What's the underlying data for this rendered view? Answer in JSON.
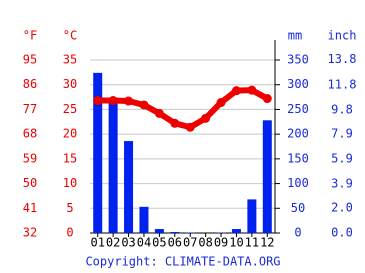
{
  "chart_data": {
    "type": "climate",
    "categories": [
      "01",
      "02",
      "03",
      "04",
      "05",
      "06",
      "07",
      "08",
      "09",
      "10",
      "11",
      "12"
    ],
    "temperature": {
      "color": "#ee0000",
      "values": [
        26.8,
        26.8,
        26.7,
        25.9,
        24.2,
        22.2,
        21.4,
        23.2,
        26.4,
        28.8,
        28.9,
        27.2
      ]
    },
    "precipitation": {
      "color": "#0022ee",
      "axis": "y2",
      "values": [
        324,
        268,
        186,
        53,
        8,
        2,
        1,
        0,
        1,
        8,
        68,
        228
      ]
    },
    "ylabel": "°C",
    "ylabel_f": "°F",
    "y2label": "mm",
    "y2label_inch": "inch",
    "ylim": [
      0,
      35
    ],
    "yticks": [
      0,
      5,
      10,
      15,
      20,
      25,
      30,
      35
    ],
    "yticks_f": [
      32,
      41,
      50,
      59,
      68,
      77,
      86,
      95
    ],
    "y2lim": [
      0,
      350
    ],
    "y2ticks": [
      0,
      50,
      100,
      150,
      200,
      250,
      300,
      350
    ],
    "y2ticks_inch": [
      {
        "value": 0,
        "label": "0.0"
      },
      {
        "value": 2,
        "label": "2.0"
      },
      3.9,
      5.9,
      7.9,
      9.8,
      11.8,
      13.8
    ],
    "grid": true,
    "credit": "Copyright: CLIMATE-DATA.ORG"
  }
}
